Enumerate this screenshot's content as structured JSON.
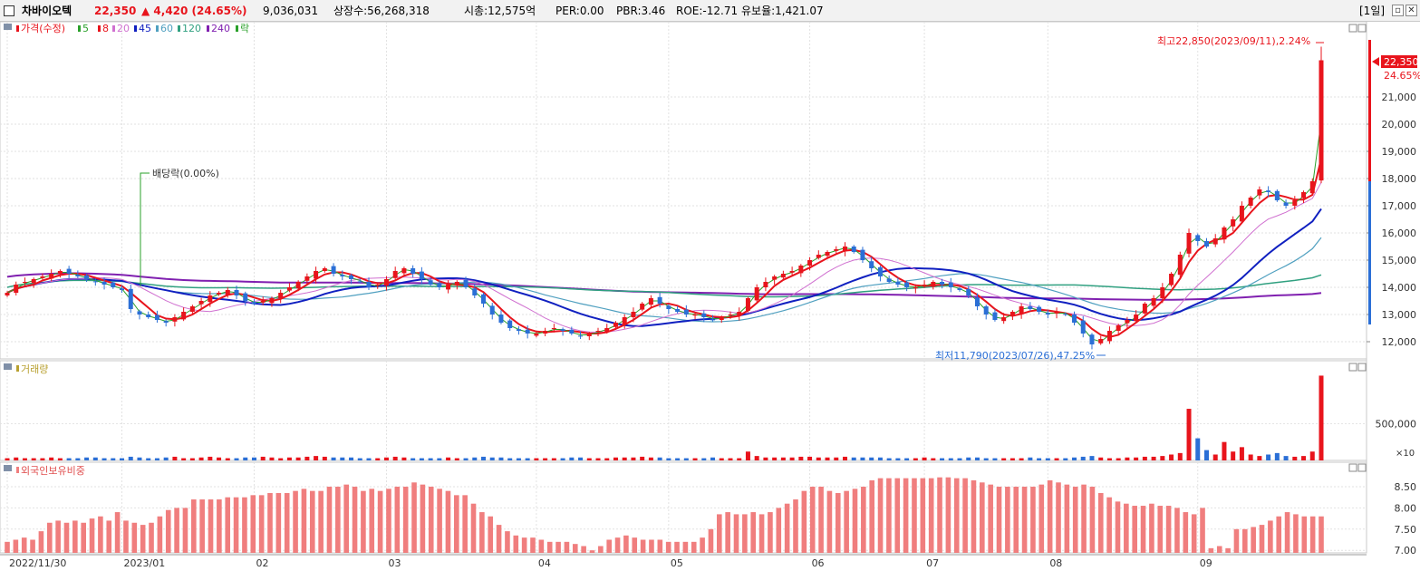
{
  "header": {
    "name": "차바이오텍",
    "price": "22,350",
    "change": "▲ 4,420 (24.65%)",
    "volume": "9,036,031",
    "listed": "상장수:56,268,318",
    "marketcap": "시총:12,575억",
    "per": "PER:0.00",
    "pbr": "PBR:3.46",
    "roe": "ROE:-12.71",
    "float": "유보율:1,421.07",
    "period": "[1일]"
  },
  "legend": {
    "price": "가격(수정)",
    "ma5": "5",
    "ma8": "8",
    "ma20": "20",
    "ma45": "45",
    "ma60": "60",
    "ma120": "120",
    "ma240": "240",
    "rak": "락",
    "volume": "거래량",
    "foreign": "외국인보유비중"
  },
  "colors": {
    "up": "#e8141c",
    "down": "#2b6fd6",
    "ma5": "#2aa02a",
    "ma8": "#e8141c",
    "ma20": "#d070d0",
    "ma45": "#1020c0",
    "ma60": "#50a0c0",
    "ma120": "#30a080",
    "ma240": "#8020b0",
    "foreign_bar": "#f07e7e"
  },
  "annotations": {
    "high": "최고22,850(2023/09/11),2.24%",
    "low": "최저11,790(2023/07/26),47.25%",
    "dividend": "배당락(0.00%)",
    "last_price": "22,350",
    "last_pct": "24.65%",
    "vol_unit": "×10"
  },
  "chart_data": [
    {
      "type": "candlestick",
      "title": "가격(수정)",
      "x_labels": [
        "2022/11/30",
        "2023/01",
        "02",
        "03",
        "04",
        "05",
        "06",
        "07",
        "08",
        "09"
      ],
      "y_ticks": [
        "12,000",
        "13,000",
        "14,000",
        "15,000",
        "16,000",
        "17,000",
        "18,000",
        "19,000",
        "20,000",
        "21,000"
      ],
      "ylim": [
        11500,
        23300
      ],
      "close_series": [
        13800,
        14100,
        14200,
        14300,
        14400,
        14500,
        14600,
        14500,
        14400,
        14300,
        14200,
        14100,
        14000,
        13900,
        13200,
        13000,
        12900,
        12800,
        12700,
        12900,
        13100,
        13300,
        13500,
        13700,
        13800,
        13900,
        13700,
        13500,
        13400,
        13500,
        13600,
        13800,
        14000,
        14200,
        14400,
        14600,
        14700,
        14500,
        14400,
        14300,
        14200,
        14000,
        14100,
        14300,
        14600,
        14700,
        14500,
        14300,
        14100,
        14000,
        14100,
        14200,
        14000,
        13700,
        13400,
        13000,
        12700,
        12500,
        12400,
        12300,
        12300,
        12400,
        12500,
        12400,
        12300,
        12200,
        12300,
        12400,
        12500,
        12700,
        12900,
        13100,
        13400,
        13600,
        13400,
        13200,
        13100,
        13000,
        13000,
        12900,
        12800,
        12900,
        13000,
        13100,
        13600,
        14000,
        14200,
        14400,
        14500,
        14600,
        14800,
        15000,
        15200,
        15300,
        15400,
        15500,
        15300,
        15000,
        14700,
        14400,
        14200,
        14100,
        14000,
        14000,
        14100,
        14200,
        14100,
        14000,
        13900,
        13700,
        13300,
        13000,
        12800,
        12900,
        13100,
        13300,
        13200,
        13100,
        13000,
        13100,
        13000,
        12700,
        12300,
        11900,
        12100,
        12400,
        12600,
        12800,
        13000,
        13400,
        13600,
        14000,
        14500,
        15200,
        16000,
        15700,
        15500,
        15800,
        16200,
        16500,
        17000,
        17300,
        17600,
        17500,
        17200,
        17000,
        17200,
        17500,
        17900,
        22350
      ],
      "volume_series": [
        3,
        4,
        3,
        3,
        3,
        4,
        3,
        3,
        3,
        4,
        4,
        3,
        3,
        3,
        5,
        4,
        3,
        3,
        4,
        5,
        3,
        3,
        4,
        5,
        4,
        3,
        3,
        4,
        4,
        5,
        4,
        3,
        4,
        4,
        5,
        6,
        5,
        4,
        4,
        4,
        3,
        3,
        3,
        4,
        5,
        4,
        3,
        3,
        3,
        3,
        4,
        3,
        3,
        4,
        5,
        4,
        4,
        3,
        3,
        3,
        3,
        3,
        3,
        3,
        4,
        4,
        3,
        3,
        3,
        4,
        4,
        4,
        5,
        4,
        4,
        3,
        3,
        3,
        3,
        3,
        4,
        3,
        3,
        3,
        12,
        6,
        4,
        4,
        4,
        4,
        5,
        5,
        4,
        4,
        4,
        5,
        4,
        4,
        4,
        4,
        3,
        3,
        3,
        3,
        4,
        3,
        3,
        3,
        3,
        4,
        4,
        3,
        3,
        3,
        3,
        3,
        4,
        3,
        3,
        3,
        3,
        4,
        5,
        6,
        4,
        3,
        3,
        4,
        4,
        5,
        5,
        6,
        8,
        10,
        70,
        30,
        14,
        8,
        25,
        12,
        18,
        8,
        6,
        8,
        10,
        6,
        5,
        6,
        12,
        115
      ],
      "volume_ylim": [
        0,
        118
      ]
    },
    {
      "type": "bar",
      "title": "외국인보유비중",
      "y_ticks": [
        "7.00",
        "7.50",
        "8.00",
        "8.50"
      ],
      "ylim": [
        6.94,
        8.82
      ],
      "values": [
        7.2,
        7.25,
        7.3,
        7.25,
        7.45,
        7.65,
        7.7,
        7.65,
        7.7,
        7.65,
        7.75,
        7.8,
        7.7,
        7.9,
        7.7,
        7.65,
        7.6,
        7.65,
        7.8,
        7.95,
        8.0,
        8.0,
        8.2,
        8.2,
        8.2,
        8.2,
        8.25,
        8.25,
        8.25,
        8.3,
        8.3,
        8.35,
        8.35,
        8.35,
        8.4,
        8.45,
        8.4,
        8.4,
        8.5,
        8.5,
        8.55,
        8.5,
        8.4,
        8.45,
        8.4,
        8.45,
        8.5,
        8.5,
        8.6,
        8.55,
        8.5,
        8.45,
        8.4,
        8.3,
        8.3,
        8.1,
        7.9,
        7.8,
        7.6,
        7.45,
        7.35,
        7.3,
        7.3,
        7.25,
        7.2,
        7.2,
        7.2,
        7.15,
        7.1,
        7.0,
        7.1,
        7.25,
        7.3,
        7.35,
        7.3,
        7.25,
        7.25,
        7.25,
        7.2,
        7.2,
        7.2,
        7.2,
        7.3,
        7.5,
        7.85,
        7.9,
        7.85,
        7.85,
        7.9,
        7.85,
        7.9,
        8.0,
        8.1,
        8.2,
        8.4,
        8.5,
        8.5,
        8.4,
        8.35,
        8.4,
        8.45,
        8.5,
        8.65,
        8.7,
        8.7,
        8.7,
        8.7,
        8.7,
        8.7,
        8.7,
        8.72,
        8.72,
        8.7,
        8.7,
        8.65,
        8.6,
        8.55,
        8.5,
        8.5,
        8.5,
        8.5,
        8.5,
        8.55,
        8.65,
        8.6,
        8.55,
        8.5,
        8.55,
        8.5,
        8.35,
        8.25,
        8.15,
        8.1,
        8.05,
        8.05,
        8.1,
        8.05,
        8.05,
        8.0,
        7.9,
        7.85,
        8.0,
        7.05,
        7.1,
        7.05,
        7.5,
        7.5,
        7.55,
        7.6,
        7.7,
        7.8,
        7.9,
        7.85,
        7.8,
        7.8,
        7.8
      ]
    }
  ]
}
